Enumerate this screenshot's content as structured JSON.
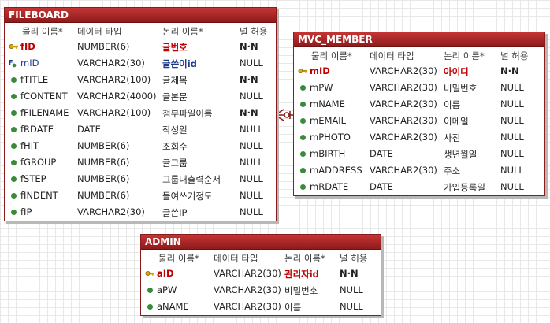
{
  "tables": [
    {
      "name": "FILEBOARD",
      "headers": {
        "physical": "물리 이름*",
        "type": "데이터 타입",
        "logical": "논리 이름*",
        "nullable": "널 허용"
      },
      "columns": [
        {
          "name": "fID",
          "type": "NUMBER(6)",
          "logical": "글번호",
          "nullable": "N·N",
          "key": "pk"
        },
        {
          "name": "mID",
          "type": "VARCHAR2(30)",
          "logical": "글쓴이id",
          "nullable": "NULL",
          "key": "fk"
        },
        {
          "name": "fTITLE",
          "type": "VARCHAR2(100)",
          "logical": "글제목",
          "nullable": "N·N",
          "key": "none"
        },
        {
          "name": "fCONTENT",
          "type": "VARCHAR2(4000)",
          "logical": "글본문",
          "nullable": "NULL",
          "key": "none"
        },
        {
          "name": "fFILENAME",
          "type": "VARCHAR2(100)",
          "logical": "첨부파일이름",
          "nullable": "N·N",
          "key": "none"
        },
        {
          "name": "fRDATE",
          "type": "DATE",
          "logical": "작성일",
          "nullable": "NULL",
          "key": "none"
        },
        {
          "name": "fHIT",
          "type": "NUMBER(6)",
          "logical": "조회수",
          "nullable": "NULL",
          "key": "none"
        },
        {
          "name": "fGROUP",
          "type": "NUMBER(6)",
          "logical": "글그룹",
          "nullable": "NULL",
          "key": "none"
        },
        {
          "name": "fSTEP",
          "type": "NUMBER(6)",
          "logical": "그룹내출력순서",
          "nullable": "NULL",
          "key": "none"
        },
        {
          "name": "fINDENT",
          "type": "NUMBER(6)",
          "logical": "들여쓰기정도",
          "nullable": "NULL",
          "key": "none"
        },
        {
          "name": "fIP",
          "type": "VARCHAR2(30)",
          "logical": "글쓴IP",
          "nullable": "NULL",
          "key": "none"
        }
      ]
    },
    {
      "name": "MVC_MEMBER",
      "headers": {
        "physical": "물리 이름*",
        "type": "데이터 타입",
        "logical": "논리 이름*",
        "nullable": "널 허용"
      },
      "columns": [
        {
          "name": "mID",
          "type": "VARCHAR2(30)",
          "logical": "아이디",
          "nullable": "N·N",
          "key": "pk"
        },
        {
          "name": "mPW",
          "type": "VARCHAR2(30)",
          "logical": "비밀번호",
          "nullable": "NULL",
          "key": "none"
        },
        {
          "name": "mNAME",
          "type": "VARCHAR2(30)",
          "logical": "이름",
          "nullable": "NULL",
          "key": "none"
        },
        {
          "name": "mEMAIL",
          "type": "VARCHAR2(30)",
          "logical": "이메일",
          "nullable": "NULL",
          "key": "none"
        },
        {
          "name": "mPHOTO",
          "type": "VARCHAR2(30)",
          "logical": "사진",
          "nullable": "NULL",
          "key": "none"
        },
        {
          "name": "mBIRTH",
          "type": "DATE",
          "logical": "생년월일",
          "nullable": "NULL",
          "key": "none"
        },
        {
          "name": "mADDRESS",
          "type": "VARCHAR2(30)",
          "logical": "주소",
          "nullable": "NULL",
          "key": "none"
        },
        {
          "name": "mRDATE",
          "type": "DATE",
          "logical": "가입등록일",
          "nullable": "NULL",
          "key": "none"
        }
      ]
    },
    {
      "name": "ADMIN",
      "headers": {
        "physical": "물리 이름*",
        "type": "데이터 타입",
        "logical": "논리 이름*",
        "nullable": "널 허용"
      },
      "columns": [
        {
          "name": "aID",
          "type": "VARCHAR2(30)",
          "logical": "관리자id",
          "nullable": "N·N",
          "key": "pk"
        },
        {
          "name": "aPW",
          "type": "VARCHAR2(30)",
          "logical": "비밀번호",
          "nullable": "NULL",
          "key": "none"
        },
        {
          "name": "aNAME",
          "type": "VARCHAR2(30)",
          "logical": "이름",
          "nullable": "NULL",
          "key": "none"
        }
      ]
    }
  ],
  "icons": {
    "pk": "key-icon",
    "fk": "foreign-key-icon",
    "none": "column-dot-icon"
  },
  "colors": {
    "title_bar": "#b02a2a",
    "border": "#8b1a1a",
    "pk_text": "#c00000",
    "fk_text": "#1e3b8a",
    "dot": "#3a8a3a",
    "relation_line": "#8b1a1a"
  }
}
